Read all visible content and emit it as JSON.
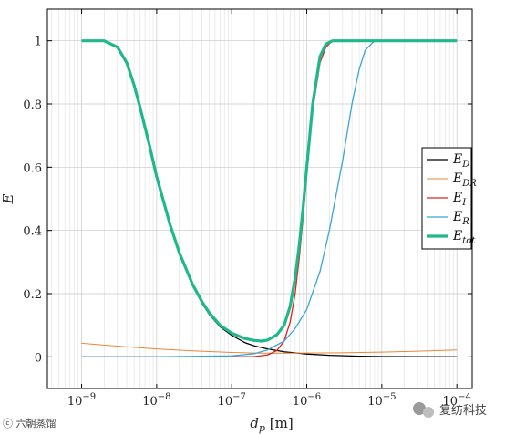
{
  "chart_data": {
    "type": "line",
    "xlabel": "d_p [m]",
    "ylabel": "E",
    "xscale": "log",
    "xlim": [
      3.5e-10,
      0.00016
    ],
    "ylim": [
      -0.1,
      1.1
    ],
    "x_ticks": [
      {
        "value": 1e-09,
        "base": "10",
        "exp": "−9"
      },
      {
        "value": 1e-08,
        "base": "10",
        "exp": "−8"
      },
      {
        "value": 1e-07,
        "base": "10",
        "exp": "−7"
      },
      {
        "value": 1e-06,
        "base": "10",
        "exp": "−6"
      },
      {
        "value": 1e-05,
        "base": "10",
        "exp": "−5"
      },
      {
        "value": 0.0001,
        "base": "10",
        "exp": "−4"
      }
    ],
    "y_ticks": [
      {
        "value": 0,
        "label": "0"
      },
      {
        "value": 0.2,
        "label": "0.2"
      },
      {
        "value": 0.4,
        "label": "0.4"
      },
      {
        "value": 0.6,
        "label": "0.6"
      },
      {
        "value": 0.8,
        "label": "0.8"
      },
      {
        "value": 1,
        "label": "1"
      }
    ],
    "grid": true,
    "legend_position": "right",
    "series": [
      {
        "name": "E_D",
        "label_main": "E",
        "label_sub": "D",
        "color": "#000000",
        "width": 1.3,
        "points": [
          [
            1e-09,
            1.0
          ],
          [
            2e-09,
            1.0
          ],
          [
            3e-09,
            0.98
          ],
          [
            4e-09,
            0.93
          ],
          [
            5e-09,
            0.86
          ],
          [
            6e-09,
            0.79
          ],
          [
            8e-09,
            0.67
          ],
          [
            1e-08,
            0.57
          ],
          [
            1.5e-08,
            0.42
          ],
          [
            2e-08,
            0.33
          ],
          [
            3e-08,
            0.23
          ],
          [
            4e-08,
            0.17
          ],
          [
            5e-08,
            0.135
          ],
          [
            7e-08,
            0.095
          ],
          [
            1e-07,
            0.068
          ],
          [
            1.5e-07,
            0.045
          ],
          [
            2e-07,
            0.035
          ],
          [
            3e-07,
            0.025
          ],
          [
            5e-07,
            0.016
          ],
          [
            1e-06,
            0.009
          ],
          [
            2e-06,
            0.005
          ],
          [
            5e-06,
            0.002
          ],
          [
            1e-05,
            0.001
          ],
          [
            0.0001,
            0.0
          ]
        ]
      },
      {
        "name": "E_DR",
        "label_main": "E",
        "label_sub": "DR",
        "color": "#e8873a",
        "width": 1.0,
        "points": [
          [
            1e-09,
            0.043
          ],
          [
            3e-09,
            0.034
          ],
          [
            1e-08,
            0.025
          ],
          [
            3e-08,
            0.019
          ],
          [
            1e-07,
            0.014
          ],
          [
            2e-07,
            0.012
          ],
          [
            3e-07,
            0.0115
          ],
          [
            1e-06,
            0.012
          ],
          [
            3e-06,
            0.013
          ],
          [
            1e-05,
            0.015
          ],
          [
            3e-05,
            0.018
          ],
          [
            0.0001,
            0.022
          ]
        ]
      },
      {
        "name": "E_I",
        "label_main": "E",
        "label_sub": "I",
        "color": "#e02020",
        "width": 1.3,
        "points": [
          [
            1e-09,
            0.0
          ],
          [
            1e-07,
            0.0
          ],
          [
            2e-07,
            0.001
          ],
          [
            3e-07,
            0.006
          ],
          [
            4e-07,
            0.02
          ],
          [
            5e-07,
            0.05
          ],
          [
            6e-07,
            0.11
          ],
          [
            7e-07,
            0.2
          ],
          [
            8e-07,
            0.32
          ],
          [
            9e-07,
            0.45
          ],
          [
            1e-06,
            0.58
          ],
          [
            1.2e-06,
            0.78
          ],
          [
            1.5e-06,
            0.93
          ],
          [
            1.8e-06,
            0.98
          ],
          [
            2.2e-06,
            1.0
          ],
          [
            0.0001,
            1.0
          ]
        ]
      },
      {
        "name": "E_R",
        "label_main": "E",
        "label_sub": "R",
        "color": "#36a6d8",
        "width": 1.3,
        "points": [
          [
            1e-09,
            0.0
          ],
          [
            1e-08,
            0.0
          ],
          [
            1e-07,
            0.003
          ],
          [
            2e-07,
            0.01
          ],
          [
            3e-07,
            0.022
          ],
          [
            5e-07,
            0.05
          ],
          [
            7e-07,
            0.09
          ],
          [
            1e-06,
            0.15
          ],
          [
            1.5e-06,
            0.27
          ],
          [
            2e-06,
            0.4
          ],
          [
            3e-06,
            0.62
          ],
          [
            4e-06,
            0.8
          ],
          [
            5e-06,
            0.91
          ],
          [
            6e-06,
            0.97
          ],
          [
            8e-06,
            1.0
          ],
          [
            0.0001,
            1.0
          ]
        ]
      },
      {
        "name": "E_tot",
        "label_main": "E",
        "label_sub": "tot",
        "color": "#1fb88a",
        "width": 3.2,
        "points": [
          [
            1e-09,
            1.0
          ],
          [
            2e-09,
            1.0
          ],
          [
            3e-09,
            0.98
          ],
          [
            4e-09,
            0.93
          ],
          [
            5e-09,
            0.86
          ],
          [
            6e-09,
            0.79
          ],
          [
            8e-09,
            0.67
          ],
          [
            1e-08,
            0.57
          ],
          [
            1.5e-08,
            0.42
          ],
          [
            2e-08,
            0.33
          ],
          [
            3e-08,
            0.23
          ],
          [
            4e-08,
            0.175
          ],
          [
            5e-08,
            0.14
          ],
          [
            7e-08,
            0.1
          ],
          [
            1e-07,
            0.075
          ],
          [
            1.5e-07,
            0.058
          ],
          [
            2e-07,
            0.052
          ],
          [
            2.5e-07,
            0.05
          ],
          [
            3e-07,
            0.053
          ],
          [
            4e-07,
            0.07
          ],
          [
            5e-07,
            0.1
          ],
          [
            6e-07,
            0.16
          ],
          [
            7e-07,
            0.25
          ],
          [
            8e-07,
            0.36
          ],
          [
            9e-07,
            0.48
          ],
          [
            1e-06,
            0.6
          ],
          [
            1.2e-06,
            0.8
          ],
          [
            1.5e-06,
            0.95
          ],
          [
            1.8e-06,
            0.99
          ],
          [
            2.2e-06,
            1.0
          ],
          [
            0.0001,
            1.0
          ]
        ]
      }
    ]
  },
  "watermarks": {
    "left_text": "ⓒ 六朝蒸馏",
    "right_text": "复纺科技"
  }
}
